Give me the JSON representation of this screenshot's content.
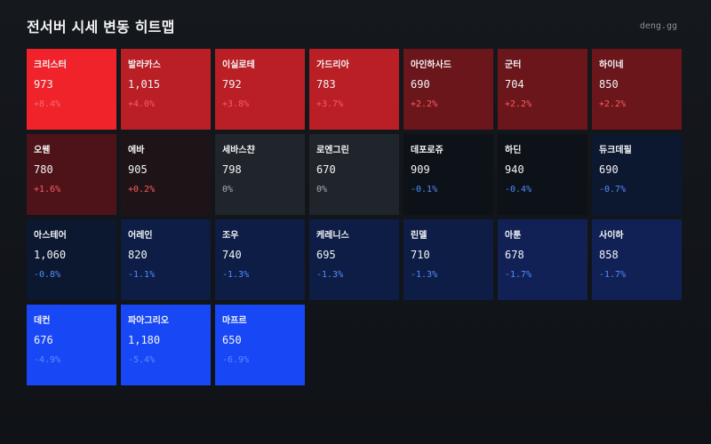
{
  "header": {
    "title": "전서버 시세 변동 히트맵",
    "brand": "deng.gg"
  },
  "tiles": [
    {
      "name": "크리스터",
      "price": "973",
      "change": "+8.4%",
      "pct": 8.4
    },
    {
      "name": "발라카스",
      "price": "1,015",
      "change": "+4.0%",
      "pct": 4.0
    },
    {
      "name": "이실로테",
      "price": "792",
      "change": "+3.8%",
      "pct": 3.8
    },
    {
      "name": "가드리아",
      "price": "783",
      "change": "+3.7%",
      "pct": 3.7
    },
    {
      "name": "아인하사드",
      "price": "690",
      "change": "+2.2%",
      "pct": 2.2
    },
    {
      "name": "군터",
      "price": "704",
      "change": "+2.2%",
      "pct": 2.2
    },
    {
      "name": "하이네",
      "price": "850",
      "change": "+2.2%",
      "pct": 2.2
    },
    {
      "name": "오웬",
      "price": "780",
      "change": "+1.6%",
      "pct": 1.6
    },
    {
      "name": "에바",
      "price": "905",
      "change": "+0.2%",
      "pct": 0.2
    },
    {
      "name": "세바스챤",
      "price": "798",
      "change": "0%",
      "pct": 0
    },
    {
      "name": "로엔그린",
      "price": "670",
      "change": "0%",
      "pct": 0
    },
    {
      "name": "데포로쥬",
      "price": "909",
      "change": "-0.1%",
      "pct": -0.1
    },
    {
      "name": "하딘",
      "price": "940",
      "change": "-0.4%",
      "pct": -0.4
    },
    {
      "name": "듀크데필",
      "price": "690",
      "change": "-0.7%",
      "pct": -0.7
    },
    {
      "name": "아스테어",
      "price": "1,060",
      "change": "-0.8%",
      "pct": -0.8
    },
    {
      "name": "어레인",
      "price": "820",
      "change": "-1.1%",
      "pct": -1.1
    },
    {
      "name": "조우",
      "price": "740",
      "change": "-1.3%",
      "pct": -1.3
    },
    {
      "name": "케레니스",
      "price": "695",
      "change": "-1.3%",
      "pct": -1.3
    },
    {
      "name": "린델",
      "price": "710",
      "change": "-1.3%",
      "pct": -1.3
    },
    {
      "name": "아툰",
      "price": "678",
      "change": "-1.7%",
      "pct": -1.7
    },
    {
      "name": "사이하",
      "price": "858",
      "change": "-1.7%",
      "pct": -1.7
    },
    {
      "name": "데컨",
      "price": "676",
      "change": "-4.9%",
      "pct": -4.9
    },
    {
      "name": "파아그리오",
      "price": "1,180",
      "change": "-5.4%",
      "pct": -5.4
    },
    {
      "name": "마프르",
      "price": "650",
      "change": "-6.9%",
      "pct": -6.9
    }
  ],
  "colors": {
    "up_strong": "#f0232b",
    "up_mid": "#b91f25",
    "up_low": "#6b161b",
    "up_faint": "#4e1318",
    "up_tiny": "#1e1417",
    "flat": "#20252b",
    "down_tiny": "#0d1118",
    "down_faint": "#0c1730",
    "down_low": "#0e1d45",
    "down_mid": "#112155",
    "down_strong": "#1847f5",
    "text_up_strong": "#f36b72",
    "text_up": "#ff5a62",
    "text_flat": "#a7adb5",
    "text_down": "#4f8dff",
    "text_down_strong": "#5b8cff"
  }
}
